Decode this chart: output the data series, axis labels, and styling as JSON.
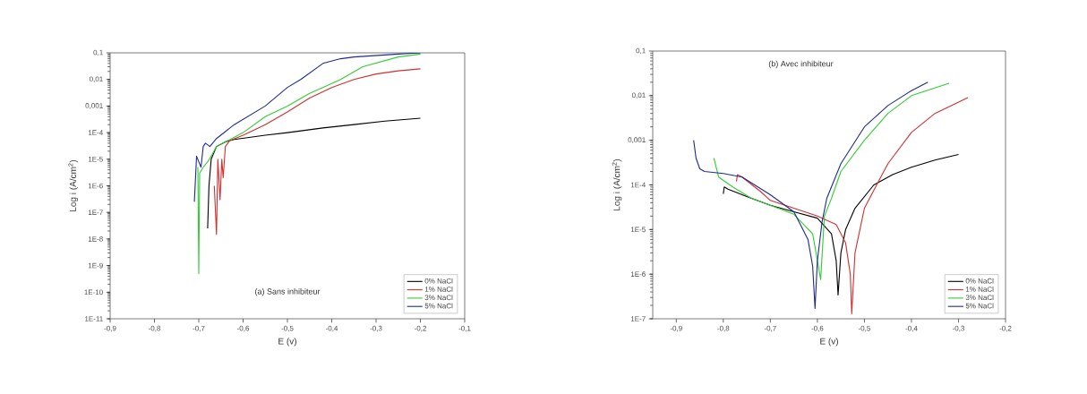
{
  "chart_data": [
    {
      "type": "line",
      "title": "(a) Sans inhibiteur",
      "xlabel": "E (v)",
      "ylabel": "Log i (A/cm$^{2}$)",
      "log": "y",
      "legend": "bottom right",
      "grid": false,
      "xlim": [
        -0.9,
        -0.1
      ],
      "ylim": [
        1e-11,
        0.1
      ],
      "xticks": [
        {
          "value": -0.9,
          "label": "-0,9"
        },
        {
          "value": -0.8,
          "label": "-0,8"
        },
        {
          "value": -0.7,
          "label": "-0,7"
        },
        {
          "value": -0.6,
          "label": "-0,6"
        },
        {
          "value": -0.5,
          "label": "-0,5"
        },
        {
          "value": -0.4,
          "label": "-0,4"
        },
        {
          "value": -0.3,
          "label": "-0,3"
        },
        {
          "value": -0.2,
          "label": "-0,2"
        },
        {
          "value": -0.1,
          "label": "-0,1"
        }
      ],
      "yticks": [
        {
          "value": 1e-11,
          "label": "1E-11"
        },
        {
          "value": 1e-10,
          "label": "1E-10"
        },
        {
          "value": 1e-09,
          "label": "1E-9"
        },
        {
          "value": 1e-08,
          "label": "1E-8"
        },
        {
          "value": 1e-07,
          "label": "1E-7"
        },
        {
          "value": 1e-06,
          "label": "1E-6"
        },
        {
          "value": 1e-05,
          "label": "1E-5"
        },
        {
          "value": 0.0001,
          "label": "1E-4"
        },
        {
          "value": 0.001,
          "label": "0,001"
        },
        {
          "value": 0.01,
          "label": "0,01"
        },
        {
          "value": 0.1,
          "label": "0,1"
        }
      ],
      "series": [
        {
          "name": "0% NaCl",
          "color": "#000000",
          "x": [
            -0.68,
            -0.677,
            -0.672,
            -0.66,
            -0.64,
            -0.62,
            -0.55,
            -0.5,
            -0.42,
            -0.35,
            -0.28,
            -0.2
          ],
          "values": [
            2.5e-08,
            1e-06,
            1e-05,
            3e-05,
            4.5e-05,
            5.5e-05,
            8e-05,
            0.0001,
            0.00015,
            0.0002,
            0.00027,
            0.00035
          ]
        },
        {
          "name": "1% NaCl",
          "color": "#d03030",
          "x": [
            -0.665,
            -0.66,
            -0.657,
            -0.652,
            -0.648,
            -0.645,
            -0.64,
            -0.63,
            -0.6,
            -0.55,
            -0.5,
            -0.45,
            -0.4,
            -0.35,
            -0.3,
            -0.25,
            -0.2
          ],
          "values": [
            1e-06,
            1.5e-08,
            1e-05,
            3e-07,
            1e-05,
            2e-06,
            3e-05,
            5e-05,
            8e-05,
            0.0002,
            0.0006,
            0.002,
            0.005,
            0.01,
            0.016,
            0.021,
            0.025
          ]
        },
        {
          "name": "3% NaCl",
          "color": "#33cc33",
          "x": [
            -0.702,
            -0.7,
            -0.698,
            -0.69,
            -0.68,
            -0.67,
            -0.66,
            -0.6,
            -0.55,
            -0.5,
            -0.45,
            -0.42,
            -0.38,
            -0.33,
            -0.25,
            -0.2
          ],
          "values": [
            5e-06,
            5e-10,
            3e-06,
            5e-06,
            8e-06,
            1.5e-05,
            3e-05,
            0.0001,
            0.0004,
            0.001,
            0.003,
            0.005,
            0.01,
            0.03,
            0.07,
            0.09
          ]
        },
        {
          "name": "5% NaCl",
          "color": "#1f2a8f",
          "x": [
            -0.71,
            -0.705,
            -0.695,
            -0.69,
            -0.685,
            -0.675,
            -0.66,
            -0.62,
            -0.55,
            -0.5,
            -0.47,
            -0.42,
            -0.38,
            -0.35,
            -0.25,
            -0.2
          ],
          "values": [
            2.5e-07,
            1.3e-05,
            5e-06,
            3e-05,
            4e-05,
            3e-05,
            6e-05,
            0.0002,
            0.001,
            0.005,
            0.01,
            0.04,
            0.06,
            0.07,
            0.09,
            0.1
          ]
        }
      ]
    },
    {
      "type": "line",
      "title": "(b) Avec inhibiteur",
      "xlabel": "E (v)",
      "ylabel": "Log i (A/cm$^{2}$)",
      "log": "y",
      "legend": "bottom right",
      "grid": false,
      "xlim": [
        -0.95,
        -0.2
      ],
      "ylim": [
        1e-07,
        0.1
      ],
      "xticks": [
        {
          "value": -0.9,
          "label": "-0,9"
        },
        {
          "value": -0.8,
          "label": "-0,8"
        },
        {
          "value": -0.7,
          "label": "-0,7"
        },
        {
          "value": -0.6,
          "label": "-0,6"
        },
        {
          "value": -0.5,
          "label": "-0,5"
        },
        {
          "value": -0.4,
          "label": "-0,4"
        },
        {
          "value": -0.3,
          "label": "-0,3"
        },
        {
          "value": -0.2,
          "label": "-0,2"
        }
      ],
      "yticks": [
        {
          "value": 1e-07,
          "label": "1E-7"
        },
        {
          "value": 1e-06,
          "label": "1E-6"
        },
        {
          "value": 1e-05,
          "label": "1E-5"
        },
        {
          "value": 0.0001,
          "label": "1E-4"
        },
        {
          "value": 0.001,
          "label": "0,001"
        },
        {
          "value": 0.01,
          "label": "0,01"
        },
        {
          "value": 0.1,
          "label": "0,1"
        }
      ],
      "series": [
        {
          "name": "0% NaCl",
          "color": "#000000",
          "x": [
            -0.8,
            -0.798,
            -0.79,
            -0.75,
            -0.7,
            -0.65,
            -0.6,
            -0.57,
            -0.56,
            -0.556,
            -0.55,
            -0.54,
            -0.52,
            -0.48,
            -0.44,
            -0.4,
            -0.35,
            -0.3
          ],
          "values": [
            6.3e-05,
            9e-05,
            8e-05,
            5.5e-05,
            3.5e-05,
            2.5e-05,
            1.8e-05,
            8e-06,
            2e-06,
            3.4e-07,
            3e-06,
            1e-05,
            3e-05,
            0.0001,
            0.00017,
            0.00025,
            0.00036,
            0.00048
          ]
        },
        {
          "name": "1% NaCl",
          "color": "#d03030",
          "x": [
            -0.772,
            -0.77,
            -0.76,
            -0.72,
            -0.7,
            -0.65,
            -0.6,
            -0.56,
            -0.54,
            -0.53,
            -0.527,
            -0.52,
            -0.5,
            -0.47,
            -0.45,
            -0.4,
            -0.35,
            -0.28
          ],
          "values": [
            0.00012,
            0.00017,
            0.00015,
            7e-05,
            4.5e-05,
            3e-05,
            2e-05,
            1.3e-05,
            5e-06,
            1e-06,
            1.3e-07,
            3e-06,
            3e-05,
            0.00012,
            0.0003,
            0.0015,
            0.004,
            0.009
          ]
        },
        {
          "name": "3% NaCl",
          "color": "#33cc33",
          "x": [
            -0.82,
            -0.81,
            -0.78,
            -0.74,
            -0.7,
            -0.65,
            -0.61,
            -0.6,
            -0.593,
            -0.585,
            -0.57,
            -0.55,
            -0.5,
            -0.45,
            -0.4,
            -0.32
          ],
          "values": [
            0.0004,
            0.00015,
            9e-05,
            5e-05,
            3.5e-05,
            2.2e-05,
            8e-06,
            2e-06,
            7.6e-07,
            2e-05,
            5e-05,
            0.0002,
            0.001,
            0.004,
            0.01,
            0.019
          ]
        },
        {
          "name": "5% NaCl",
          "color": "#1f2a8f",
          "x": [
            -0.863,
            -0.858,
            -0.85,
            -0.84,
            -0.8,
            -0.76,
            -0.7,
            -0.65,
            -0.62,
            -0.61,
            -0.605,
            -0.6,
            -0.59,
            -0.58,
            -0.55,
            -0.5,
            -0.45,
            -0.4,
            -0.365
          ],
          "values": [
            0.001,
            0.0004,
            0.00023,
            0.0002,
            0.00018,
            0.00015,
            6e-05,
            2.5e-05,
            6e-06,
            1.5e-06,
            1.7e-07,
            2e-06,
            1.5e-05,
            5e-05,
            0.0003,
            0.002,
            0.006,
            0.013,
            0.02
          ]
        }
      ]
    }
  ]
}
